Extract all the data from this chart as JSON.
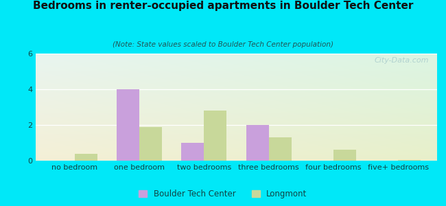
{
  "title": "Bedrooms in renter-occupied apartments in Boulder Tech Center",
  "subtitle": "(Note: State values scaled to Boulder Tech Center population)",
  "categories": [
    "no bedroom",
    "one bedroom",
    "two bedrooms",
    "three bedrooms",
    "four bedrooms",
    "five+ bedrooms"
  ],
  "boulder": [
    0,
    4.0,
    1.0,
    2.0,
    0,
    0
  ],
  "longmont": [
    0.4,
    1.9,
    2.8,
    1.3,
    0.6,
    0.05
  ],
  "boulder_color": "#c9a0dc",
  "longmont_color": "#c8d89a",
  "ylim": [
    0,
    6
  ],
  "yticks": [
    0,
    2,
    4,
    6
  ],
  "bg_cyan": "#00e8f8",
  "chart_bg_topleft": "#e8f5f0",
  "chart_bg_bottomright": "#d8ecd0",
  "bar_width": 0.35,
  "legend_boulder": "Boulder Tech Center",
  "legend_longmont": "Longmont",
  "watermark": "City-Data.com"
}
